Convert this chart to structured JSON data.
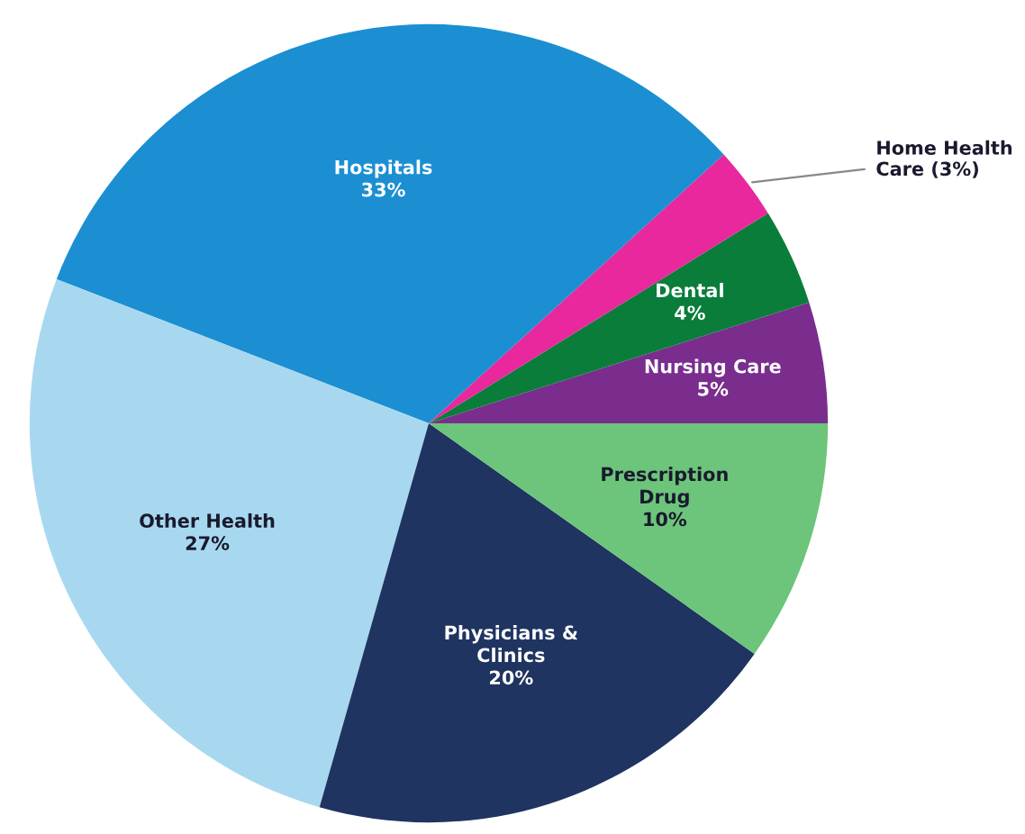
{
  "chart_data": {
    "type": "pie",
    "categories": [
      "Nursing Care",
      "Dental",
      "Home Health\nCare",
      "Hospitals",
      "Other Health",
      "Physicians &\nClinics",
      "Prescription\nDrug"
    ],
    "values": [
      5,
      4,
      3,
      33,
      27,
      20,
      10
    ],
    "value_labels": [
      "5%",
      "4%",
      "(3%)",
      "33%",
      "27%",
      "20%",
      "10%"
    ],
    "colors": [
      "#7b2d8e",
      "#0a7d3a",
      "#e8289c",
      "#1b8fd2",
      "#a8d8f0",
      "#1f3460",
      "#6cc57a"
    ]
  }
}
